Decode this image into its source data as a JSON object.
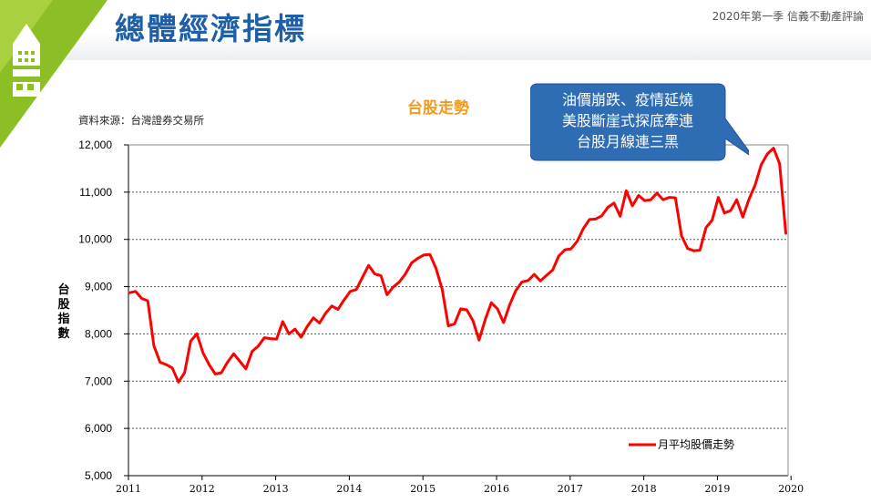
{
  "header": {
    "title": "總體經濟指標",
    "top_right": "2020年第一季  信義不動產評論"
  },
  "colors": {
    "title": "#1f5fa8",
    "logo_green": "#8cbf26",
    "line": "#ff0000",
    "chart_title": "#f39a1e",
    "callout": "#2e6db4"
  },
  "callout": {
    "lines": [
      "油價崩跌、疫情延燒",
      "美股斷崖式探底牽連",
      "台股月線連三黑"
    ]
  },
  "chart_data": {
    "type": "line",
    "title": "台股走勢",
    "source": "資料來源：台灣證券交易所",
    "ylabel": "台股指數",
    "ylabel_chars": [
      "台",
      "股",
      "指",
      "數"
    ],
    "ylim": [
      5000,
      12000
    ],
    "y_ticks": [
      12000,
      11000,
      10000,
      9000,
      8000,
      7000,
      6000,
      5000
    ],
    "y_tick_labels": [
      "12,000",
      "11,000",
      "10,000",
      "9,000",
      "8,000",
      "7,000",
      "6,000",
      "5,000"
    ],
    "x_tick_labels": [
      "2011",
      "2012",
      "2013",
      "2014",
      "2015",
      "2016",
      "2017",
      "2018",
      "2019",
      "2020"
    ],
    "grid": true,
    "legend_position": "bottom-right",
    "series": [
      {
        "name": "月平均股價走勢",
        "x_start": "2011-01",
        "x_step": "month",
        "values": [
          8870,
          8900,
          8750,
          8700,
          7750,
          7400,
          7350,
          7280,
          6980,
          7180,
          7850,
          8000,
          7600,
          7350,
          7150,
          7180,
          7400,
          7580,
          7420,
          7260,
          7630,
          7740,
          7920,
          7900,
          7890,
          8260,
          8000,
          8100,
          7930,
          8160,
          8340,
          8230,
          8440,
          8590,
          8520,
          8720,
          8900,
          8940,
          9200,
          9450,
          9270,
          9230,
          8830,
          8990,
          9100,
          9270,
          9500,
          9600,
          9670,
          9680,
          9380,
          8940,
          8170,
          8210,
          8530,
          8510,
          8280,
          7870,
          8300,
          8660,
          8530,
          8240,
          8620,
          8920,
          9100,
          9130,
          9260,
          9120,
          9240,
          9350,
          9650,
          9780,
          9800,
          9960,
          10230,
          10420,
          10430,
          10500,
          10680,
          10770,
          10490,
          11030,
          10710,
          10930,
          10820,
          10840,
          10980,
          10840,
          10890,
          10880,
          10080,
          9810,
          9760,
          9770,
          10250,
          10410,
          10890,
          10560,
          10610,
          10840,
          10470,
          10850,
          11150,
          11580,
          11810,
          11930,
          11600,
          10130
        ]
      }
    ]
  }
}
